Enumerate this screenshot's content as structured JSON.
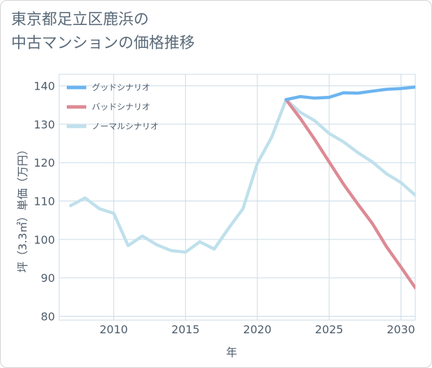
{
  "title": "東京都足立区鹿浜の\n中古マンションの価格推移",
  "chart_data": {
    "type": "line",
    "xlabel": "年",
    "ylabel": "坪（3.3㎡）単価（万円）",
    "xlim": [
      2006.2,
      2031
    ],
    "ylim": [
      79,
      143
    ],
    "x_ticks": [
      2010,
      2015,
      2020,
      2025,
      2030
    ],
    "y_ticks": [
      80,
      90,
      100,
      110,
      120,
      130,
      140
    ],
    "x_tick_labels": [
      "2010",
      "2015",
      "2020",
      "2025",
      "2030"
    ],
    "y_tick_labels": [
      "80",
      "90",
      "100",
      "110",
      "120",
      "130",
      "140"
    ],
    "grid": true,
    "legend_position": "top-left",
    "series": [
      {
        "name": "グッドシナリオ",
        "color": "#6cb4f0",
        "x": [
          2022,
          2023,
          2024,
          2025,
          2026,
          2027,
          2028,
          2029,
          2030,
          2031
        ],
        "y": [
          136.4,
          137.2,
          136.8,
          137.0,
          138.2,
          138.1,
          138.6,
          139.1,
          139.3,
          139.7
        ]
      },
      {
        "name": "バッドシナリオ",
        "color": "#dd8a94",
        "x": [
          2022,
          2023,
          2024,
          2025,
          2026,
          2027,
          2028,
          2029,
          2030,
          2031
        ],
        "y": [
          136.4,
          131.5,
          126.0,
          120.2,
          114.4,
          109.2,
          104.2,
          98.1,
          92.8,
          87.4
        ]
      },
      {
        "name": "ノーマルシナリオ",
        "color": "#bfe0ec",
        "x": [
          2007,
          2008,
          2009,
          2010,
          2011,
          2012,
          2013,
          2014,
          2015,
          2016,
          2017,
          2018,
          2019,
          2020,
          2021,
          2022,
          2023,
          2024,
          2025,
          2026,
          2027,
          2028,
          2029,
          2030,
          2031
        ],
        "y": [
          108.8,
          110.8,
          108.0,
          106.8,
          98.4,
          100.9,
          98.6,
          97.1,
          96.7,
          99.4,
          97.5,
          102.9,
          108.0,
          119.8,
          126.6,
          136.4,
          133.1,
          130.9,
          127.6,
          125.4,
          122.6,
          120.2,
          117.1,
          114.8,
          111.5
        ]
      }
    ]
  }
}
